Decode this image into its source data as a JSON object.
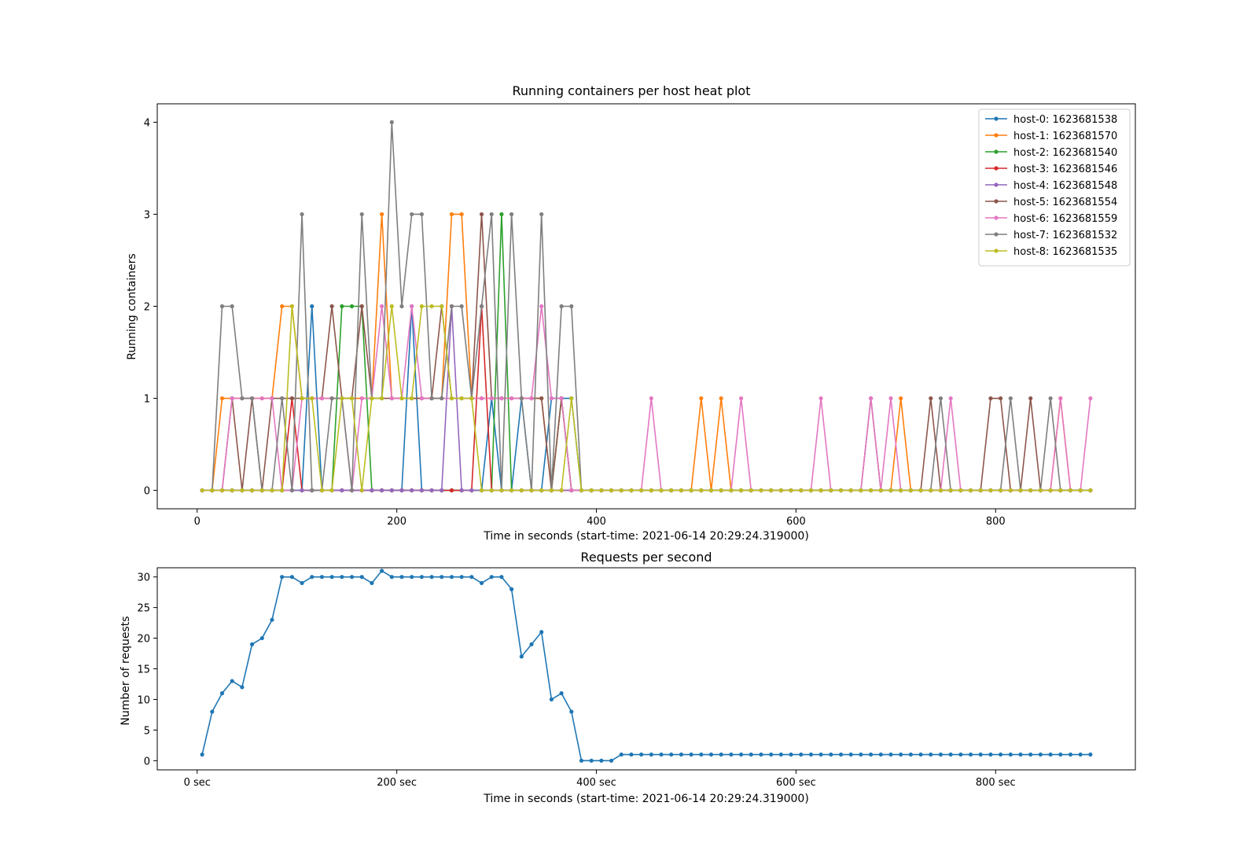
{
  "chart_data": [
    {
      "type": "line",
      "title": "Running containers per host heat plot",
      "xlabel": "Time in seconds (start-time: 2021-06-14 20:29:24.319000)",
      "ylabel": "Running containers",
      "xlim": [
        -40,
        940
      ],
      "ylim": [
        -0.2,
        4.2
      ],
      "x_ticks": [
        0,
        200,
        400,
        600,
        800
      ],
      "x_tick_labels": [
        "0",
        "200",
        "400",
        "600",
        "800"
      ],
      "y_ticks": [
        0,
        1,
        2,
        3,
        4
      ],
      "y_tick_labels": [
        "0",
        "1",
        "2",
        "3",
        "4"
      ],
      "grid": false,
      "legend_position": "upper right",
      "x_start": 5,
      "x_step": 10,
      "x_count": 90,
      "series": [
        {
          "name": "host-0: 1623681538",
          "color": "#1f77b4",
          "values": [
            0,
            0,
            0,
            0,
            0,
            0,
            0,
            0,
            0,
            0,
            0,
            2,
            0,
            0,
            0,
            0,
            0,
            0,
            0,
            0,
            0,
            2,
            0,
            0,
            0,
            0,
            0,
            0,
            0,
            1,
            0,
            0,
            1,
            0,
            0,
            1,
            1,
            1,
            0,
            0,
            0,
            0,
            0,
            0,
            0,
            0,
            0,
            0,
            0,
            0,
            0,
            0,
            0,
            0,
            0,
            0,
            0,
            0,
            0,
            0,
            0,
            0,
            0,
            0,
            0,
            0,
            0,
            0,
            0,
            0,
            0,
            0,
            0,
            0,
            0,
            0,
            0,
            0,
            0,
            0,
            0,
            0,
            0,
            0,
            0,
            0,
            0,
            0,
            0,
            0
          ]
        },
        {
          "name": "host-1: 1623681570",
          "color": "#ff7f0e",
          "values": [
            0,
            0,
            1,
            1,
            1,
            1,
            1,
            1,
            2,
            2,
            1,
            1,
            1,
            1,
            1,
            1,
            1,
            1,
            3,
            1,
            1,
            1,
            1,
            1,
            1,
            3,
            3,
            1,
            1,
            1,
            1,
            1,
            1,
            1,
            1,
            0,
            1,
            0,
            0,
            0,
            0,
            0,
            0,
            0,
            0,
            0,
            0,
            0,
            0,
            0,
            1,
            0,
            1,
            0,
            0,
            0,
            0,
            0,
            0,
            0,
            0,
            0,
            0,
            0,
            0,
            0,
            0,
            0,
            0,
            0,
            1,
            0,
            0,
            0,
            0,
            0,
            0,
            0,
            0,
            0,
            0,
            0,
            0,
            0,
            0,
            0,
            1,
            0,
            0,
            0
          ]
        },
        {
          "name": "host-2: 1623681540",
          "color": "#2ca02c",
          "values": [
            0,
            0,
            0,
            0,
            0,
            0,
            0,
            0,
            0,
            0,
            0,
            0,
            0,
            0,
            2,
            2,
            2,
            0,
            0,
            0,
            0,
            0,
            0,
            0,
            0,
            0,
            0,
            0,
            0,
            0,
            3,
            0,
            0,
            0,
            0,
            0,
            1,
            0,
            0,
            0,
            0,
            0,
            0,
            0,
            0,
            0,
            0,
            0,
            0,
            0,
            0,
            0,
            0,
            0,
            0,
            0,
            0,
            0,
            0,
            0,
            0,
            0,
            0,
            0,
            0,
            0,
            0,
            0,
            0,
            0,
            0,
            0,
            0,
            0,
            0,
            0,
            0,
            0,
            0,
            0,
            0,
            0,
            0,
            0,
            0,
            0,
            0,
            0,
            0,
            0
          ]
        },
        {
          "name": "host-3: 1623681546",
          "color": "#d62728",
          "values": [
            0,
            0,
            0,
            0,
            0,
            0,
            0,
            0,
            0,
            1,
            0,
            0,
            0,
            0,
            0,
            0,
            0,
            0,
            0,
            0,
            0,
            0,
            0,
            0,
            0,
            0,
            0,
            0,
            2,
            0,
            0,
            0,
            0,
            0,
            0,
            0,
            0,
            0,
            0,
            0,
            0,
            0,
            0,
            0,
            0,
            0,
            0,
            0,
            0,
            0,
            0,
            0,
            0,
            0,
            0,
            0,
            0,
            0,
            0,
            0,
            0,
            0,
            0,
            0,
            0,
            0,
            0,
            0,
            0,
            0,
            0,
            0,
            0,
            0,
            0,
            0,
            0,
            0,
            0,
            0,
            0,
            0,
            0,
            0,
            0,
            0,
            0,
            0,
            0,
            0
          ]
        },
        {
          "name": "host-4: 1623681548",
          "color": "#9467bd",
          "values": [
            0,
            0,
            0,
            0,
            0,
            0,
            0,
            0,
            0,
            0,
            0,
            0,
            0,
            0,
            0,
            0,
            0,
            0,
            0,
            0,
            0,
            0,
            0,
            0,
            0,
            2,
            0,
            0,
            0,
            0,
            0,
            0,
            0,
            0,
            0,
            0,
            0,
            0,
            0,
            0,
            0,
            0,
            0,
            0,
            0,
            0,
            0,
            0,
            0,
            0,
            0,
            0,
            0,
            0,
            0,
            0,
            0,
            0,
            0,
            0,
            0,
            0,
            0,
            0,
            0,
            0,
            0,
            0,
            0,
            0,
            0,
            0,
            0,
            0,
            0,
            0,
            0,
            0,
            0,
            0,
            0,
            0,
            0,
            0,
            0,
            0,
            0,
            0,
            0,
            0
          ]
        },
        {
          "name": "host-5: 1623681554",
          "color": "#8c564b",
          "values": [
            0,
            0,
            0,
            1,
            0,
            1,
            0,
            1,
            1,
            1,
            1,
            1,
            1,
            2,
            1,
            1,
            2,
            1,
            1,
            1,
            1,
            1,
            1,
            1,
            2,
            1,
            1,
            1,
            3,
            1,
            1,
            1,
            1,
            1,
            1,
            0,
            1,
            0,
            0,
            0,
            0,
            0,
            0,
            0,
            0,
            0,
            0,
            0,
            0,
            0,
            0,
            0,
            0,
            0,
            0,
            0,
            0,
            0,
            0,
            0,
            0,
            0,
            0,
            0,
            0,
            0,
            0,
            1,
            0,
            0,
            0,
            0,
            0,
            1,
            0,
            0,
            0,
            0,
            0,
            1,
            1,
            0,
            0,
            1,
            0,
            0,
            0,
            0,
            0,
            0
          ]
        },
        {
          "name": "host-6: 1623681559",
          "color": "#e377c2",
          "values": [
            0,
            0,
            0,
            1,
            1,
            1,
            1,
            1,
            0,
            0,
            1,
            1,
            1,
            1,
            1,
            0,
            1,
            1,
            2,
            1,
            1,
            2,
            1,
            1,
            1,
            1,
            1,
            1,
            1,
            1,
            1,
            1,
            1,
            1,
            2,
            1,
            1,
            0,
            0,
            0,
            0,
            0,
            0,
            0,
            0,
            1,
            0,
            0,
            0,
            0,
            0,
            0,
            0,
            0,
            1,
            0,
            0,
            0,
            0,
            0,
            0,
            0,
            1,
            0,
            0,
            0,
            0,
            1,
            0,
            1,
            0,
            0,
            0,
            0,
            0,
            1,
            0,
            0,
            0,
            0,
            0,
            0,
            0,
            0,
            0,
            0,
            1,
            0,
            0,
            1
          ]
        },
        {
          "name": "host-7: 1623681532",
          "color": "#7f7f7f",
          "values": [
            0,
            0,
            2,
            2,
            1,
            1,
            0,
            0,
            1,
            0,
            3,
            0,
            0,
            1,
            1,
            0,
            3,
            1,
            1,
            4,
            2,
            3,
            3,
            1,
            1,
            2,
            2,
            1,
            2,
            3,
            0,
            3,
            1,
            0,
            3,
            0,
            2,
            2,
            0,
            0,
            0,
            0,
            0,
            0,
            0,
            0,
            0,
            0,
            0,
            0,
            0,
            0,
            0,
            0,
            0,
            0,
            0,
            0,
            0,
            0,
            0,
            0,
            0,
            0,
            0,
            0,
            0,
            0,
            0,
            0,
            0,
            0,
            0,
            0,
            1,
            0,
            0,
            0,
            0,
            0,
            0,
            1,
            0,
            0,
            0,
            1,
            0,
            0,
            0,
            0
          ]
        },
        {
          "name": "host-8: 1623681535",
          "color": "#bcbd22",
          "values": [
            0,
            0,
            0,
            0,
            0,
            0,
            0,
            0,
            0,
            2,
            1,
            1,
            0,
            0,
            1,
            1,
            0,
            1,
            1,
            2,
            1,
            1,
            2,
            2,
            2,
            1,
            1,
            1,
            0,
            0,
            0,
            0,
            0,
            0,
            0,
            0,
            0,
            1,
            0,
            0,
            0,
            0,
            0,
            0,
            0,
            0,
            0,
            0,
            0,
            0,
            0,
            0,
            0,
            0,
            0,
            0,
            0,
            0,
            0,
            0,
            0,
            0,
            0,
            0,
            0,
            0,
            0,
            0,
            0,
            0,
            0,
            0,
            0,
            0,
            0,
            0,
            0,
            0,
            0,
            0,
            0,
            0,
            0,
            0,
            0,
            0,
            0,
            0,
            0,
            0
          ]
        }
      ]
    },
    {
      "type": "line",
      "title": "Requests per second",
      "xlabel": "Time in seconds (start-time: 2021-06-14 20:29:24.319000)",
      "ylabel": "Number of requests",
      "xlim": [
        -40,
        940
      ],
      "ylim": [
        -1.5,
        31.5
      ],
      "x_ticks": [
        0,
        200,
        400,
        600,
        800
      ],
      "x_tick_labels": [
        "0 sec",
        "200 sec",
        "400 sec",
        "600 sec",
        "800 sec"
      ],
      "y_ticks": [
        0,
        5,
        10,
        15,
        20,
        25,
        30
      ],
      "y_tick_labels": [
        "0",
        "5",
        "10",
        "15",
        "20",
        "25",
        "30"
      ],
      "grid": false,
      "x_start": 5,
      "x_step": 10,
      "x_count": 90,
      "series": [
        {
          "color": "#1f77b4",
          "values": [
            1,
            8,
            11,
            13,
            12,
            19,
            20,
            23,
            30,
            30,
            29,
            30,
            30,
            30,
            30,
            30,
            30,
            29,
            31,
            30,
            30,
            30,
            30,
            30,
            30,
            30,
            30,
            30,
            29,
            30,
            30,
            28,
            17,
            19,
            21,
            10,
            11,
            8,
            0,
            0,
            0,
            0,
            1,
            1,
            1,
            1,
            1,
            1,
            1,
            1,
            1,
            1,
            1,
            1,
            1,
            1,
            1,
            1,
            1,
            1,
            1,
            1,
            1,
            1,
            1,
            1,
            1,
            1,
            1,
            1,
            1,
            1,
            1,
            1,
            1,
            1,
            1,
            1,
            1,
            1,
            1,
            1,
            1,
            1,
            1,
            1,
            1,
            1,
            1,
            1
          ]
        }
      ]
    }
  ]
}
